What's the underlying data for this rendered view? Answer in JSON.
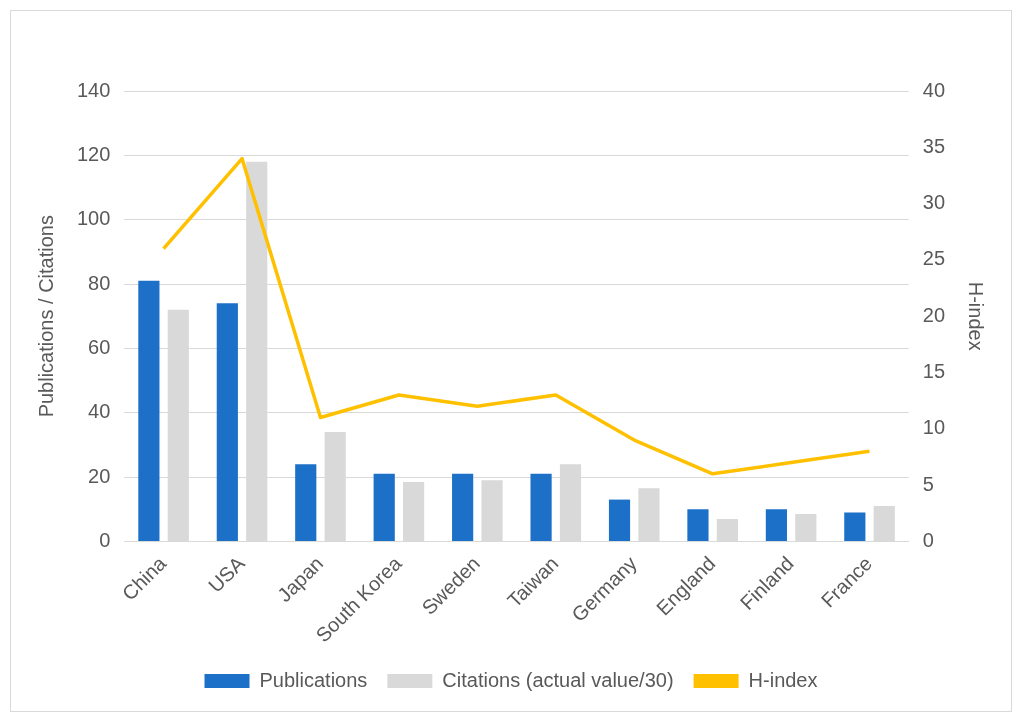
{
  "chart_data": {
    "type": "bar",
    "categories": [
      "China",
      "USA",
      "Japan",
      "South Korea",
      "Sweden",
      "Taiwan",
      "Germany",
      "England",
      "Finland",
      "France"
    ],
    "series": [
      {
        "name": "Publications",
        "color": "#1c70c8",
        "values": [
          81,
          74,
          24,
          21,
          21,
          21,
          13,
          10,
          10,
          9
        ]
      },
      {
        "name": "Citations (actual value/30)",
        "color": "#d9d9d9",
        "values": [
          72,
          118,
          34,
          18.5,
          19,
          24,
          16.5,
          7,
          8.5,
          11
        ]
      },
      {
        "name": "H-index",
        "type": "line",
        "axis": "y2",
        "color": "#ffc000",
        "values": [
          26,
          34,
          11,
          13,
          12,
          13,
          9,
          6,
          7,
          8
        ]
      }
    ],
    "ylabel": "Publications / Citations",
    "y2label": "H-index",
    "ylim": [
      0,
      140
    ],
    "yticks": [
      0,
      20,
      40,
      60,
      80,
      100,
      120,
      140
    ],
    "y2lim": [
      0,
      40
    ],
    "y2ticks": [
      0,
      5,
      10,
      15,
      20,
      25,
      30,
      35,
      40
    ],
    "grid": "y",
    "legend": "bottom",
    "marker": "none"
  }
}
